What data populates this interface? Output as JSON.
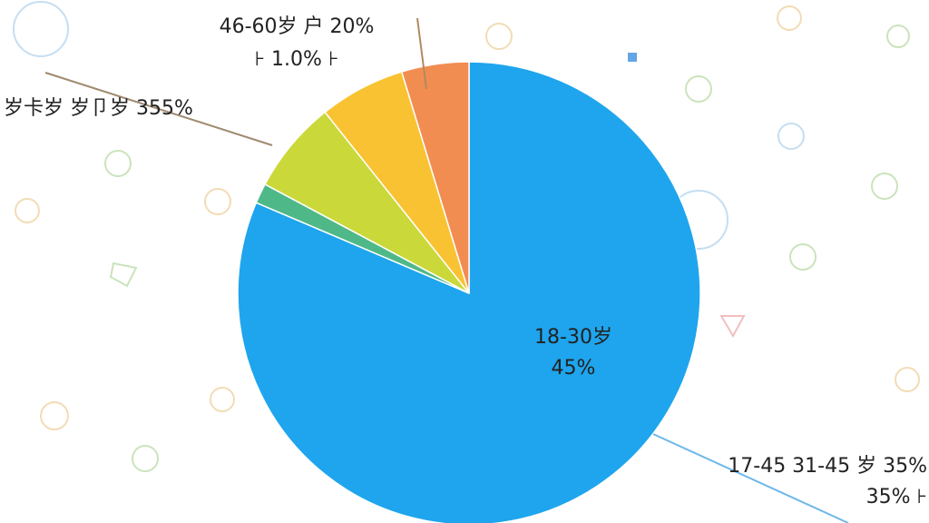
{
  "chart_data": {
    "type": "pie",
    "values": [
      81.4,
      1.4,
      6.5,
      6,
      4.7
    ],
    "colors": [
      "#1ea5ee",
      "#4fb888",
      "#cbd83a",
      "#f9c232",
      "#f28d52"
    ],
    "annotations": [
      {
        "lines": [
          "18-30岁",
          "45%"
        ]
      },
      {
        "lines": [
          "17-45 31-45 岁 35%",
          "35% ⊦"
        ]
      },
      {
        "lines": [
          "岁卡岁 岁卩岁 355%"
        ]
      },
      {
        "lines": [
          "46-60岁  户 20%",
          "⊦ 1.0% ⊦"
        ]
      }
    ]
  }
}
